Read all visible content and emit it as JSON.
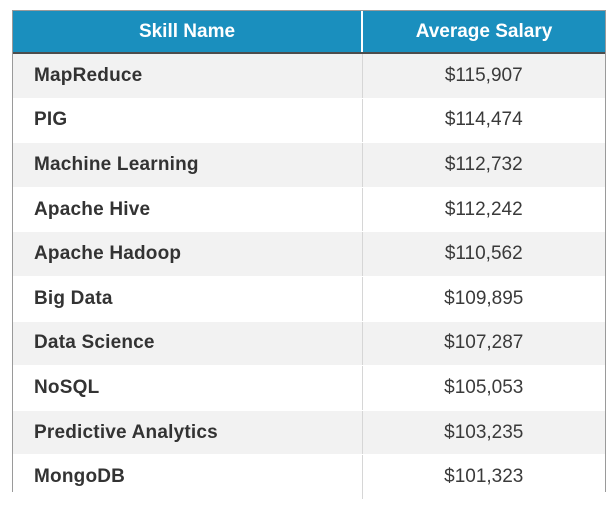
{
  "colors": {
    "header_bg": "#1a8fbe",
    "row_alt": "#f2f2f2"
  },
  "table": {
    "headers": [
      "Skill Name",
      "Average Salary"
    ],
    "rows": [
      {
        "skill": "MapReduce",
        "salary": "$115,907"
      },
      {
        "skill": "PIG",
        "salary": "$114,474"
      },
      {
        "skill": "Machine Learning",
        "salary": "$112,732"
      },
      {
        "skill": "Apache Hive",
        "salary": "$112,242"
      },
      {
        "skill": "Apache Hadoop",
        "salary": "$110,562"
      },
      {
        "skill": "Big Data",
        "salary": "$109,895"
      },
      {
        "skill": "Data Science",
        "salary": "$107,287"
      },
      {
        "skill": "NoSQL",
        "salary": "$105,053"
      },
      {
        "skill": "Predictive Analytics",
        "salary": "$103,235"
      },
      {
        "skill": "MongoDB",
        "salary": "$101,323"
      }
    ]
  }
}
